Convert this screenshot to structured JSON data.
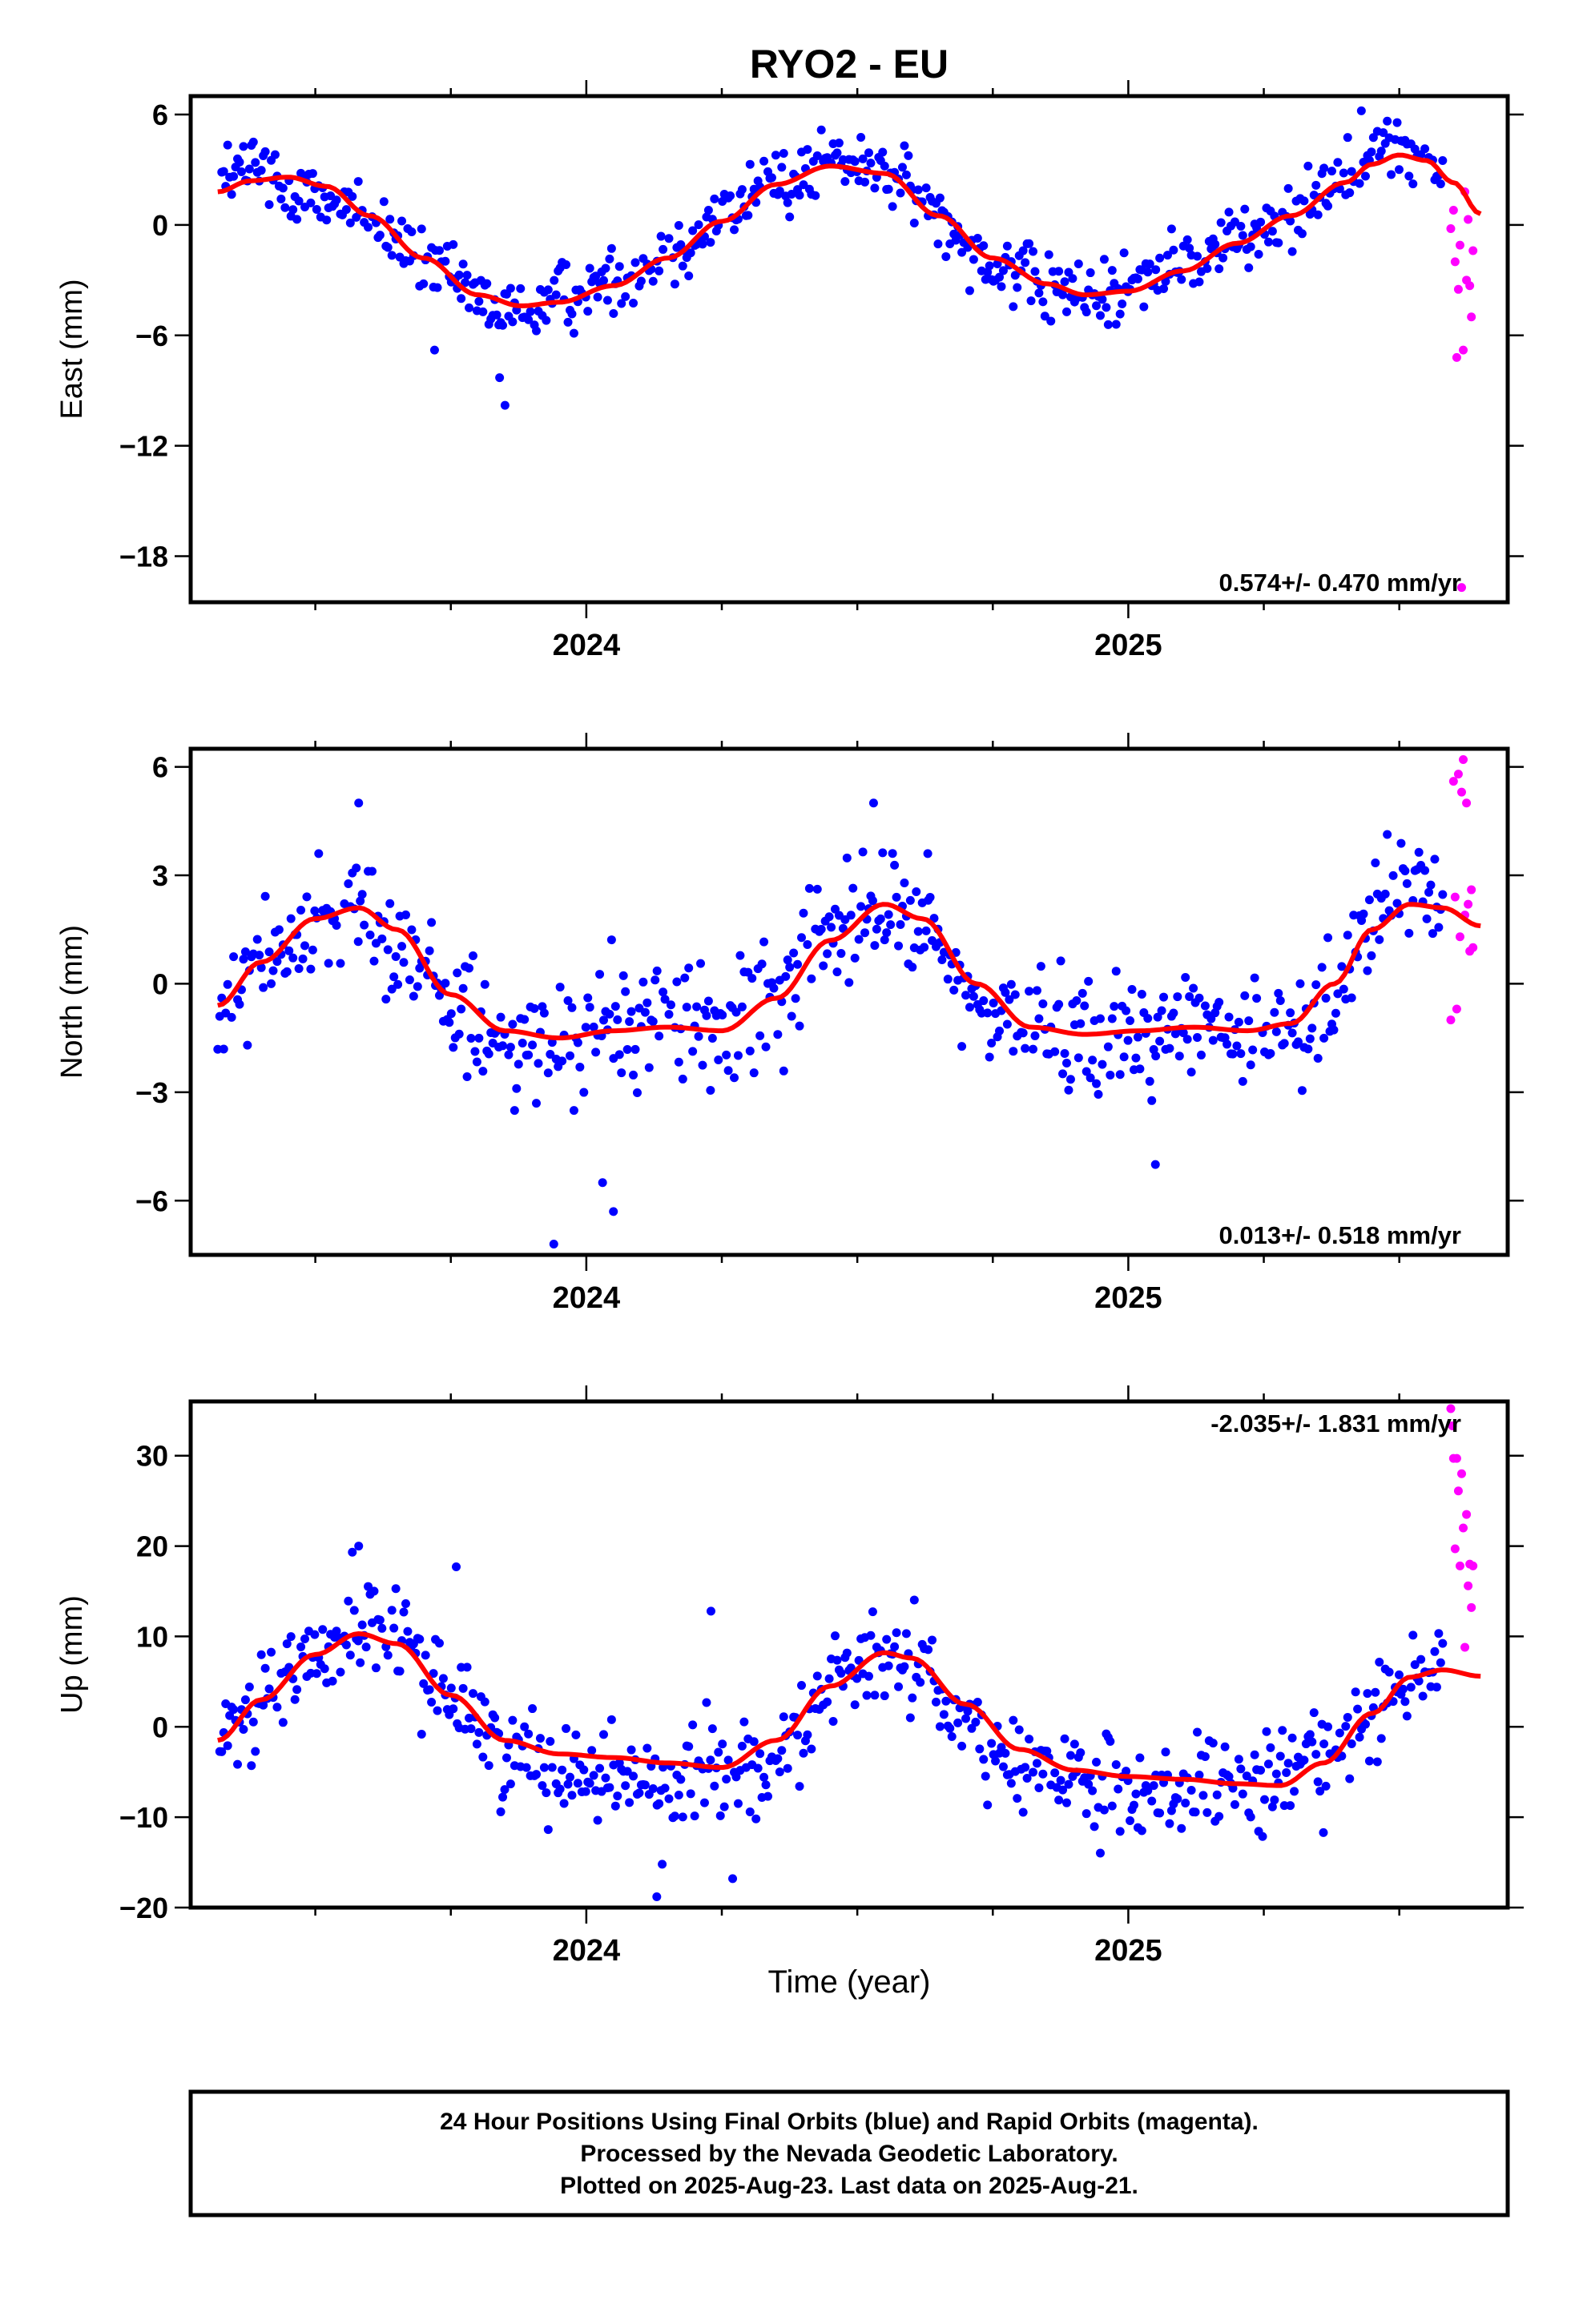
{
  "title": "RYO2 - EU",
  "colors": {
    "final": "#0000ff",
    "rapid": "#ff00ff",
    "model": "#ff0000",
    "frame": "#000000"
  },
  "footer": {
    "line1": "24 Hour Positions Using Final Orbits (blue) and Rapid Orbits (magenta).",
    "line2": "Processed by the Nevada Geodetic Laboratory.",
    "line3": "Plotted on 2025-Aug-23. Last data on 2025-Aug-21."
  },
  "chart_data": [
    {
      "type": "scatter",
      "component": "east",
      "ylabel": "East (mm)",
      "xlabel": "",
      "xlim": [
        2023.27,
        2025.7
      ],
      "ylim": [
        -20.5,
        7
      ],
      "x_ticks": [
        2024,
        2025
      ],
      "x_ticklabels": [
        "2024",
        "2025"
      ],
      "y_ticks": [
        6,
        0,
        -6,
        -12,
        -18
      ],
      "y_ticklabels": [
        "6",
        "0",
        "−6",
        "−12",
        "−18"
      ],
      "rate_label": "0.574+/- 0.470 mm/yr",
      "model_curve": {
        "x": [
          2023.32,
          2023.38,
          2023.45,
          2023.52,
          2023.6,
          2023.7,
          2023.8,
          2023.88,
          2023.95,
          2024.05,
          2024.15,
          2024.25,
          2024.35,
          2024.45,
          2024.55,
          2024.65,
          2024.75,
          2024.85,
          2024.92,
          2025.0,
          2025.1,
          2025.2,
          2025.3,
          2025.4,
          2025.45,
          2025.5,
          2025.55,
          2025.6,
          2025.65
        ],
        "y": [
          1.8,
          2.4,
          2.6,
          2.1,
          0.5,
          -1.8,
          -3.8,
          -4.4,
          -4.2,
          -3.3,
          -1.8,
          0.2,
          2.2,
          3.2,
          2.8,
          0.5,
          -1.8,
          -3.2,
          -3.8,
          -3.6,
          -2.5,
          -1.0,
          0.5,
          2.3,
          3.3,
          3.8,
          3.5,
          2.3,
          0.6
        ]
      },
      "series": [
        {
          "name": "Final Orbits",
          "color": "#0000ff",
          "anchors_x": [
            2023.32,
            2023.38,
            2023.45,
            2023.52,
            2023.6,
            2023.7,
            2023.8,
            2023.88,
            2023.95,
            2024.05,
            2024.15,
            2024.25,
            2024.35,
            2024.45,
            2024.55,
            2024.65,
            2024.75,
            2024.85,
            2024.92,
            2025.0,
            2025.1,
            2025.2,
            2025.3,
            2025.4,
            2025.45,
            2025.5,
            2025.55,
            2025.58
          ],
          "anchors_y": [
            2.6,
            3.2,
            2.2,
            1.4,
            0.2,
            -2.0,
            -4.2,
            -5.0,
            -4.0,
            -3.0,
            -1.5,
            0.5,
            2.4,
            3.4,
            2.9,
            0.6,
            -2.0,
            -3.4,
            -4.0,
            -3.2,
            -2.3,
            -0.8,
            0.8,
            2.8,
            4.0,
            4.2,
            3.2,
            2.0
          ],
          "x_start": 2023.32,
          "x_end": 2025.58,
          "spread": 1.3,
          "outliers": [
            [
              2023.85,
              -9.8
            ],
            [
              2023.84,
              -8.3
            ],
            [
              2023.72,
              -6.8
            ],
            [
              2025.43,
              6.2
            ]
          ]
        },
        {
          "name": "Rapid Orbits",
          "color": "#ff00ff",
          "points": [
            [
              2025.595,
              -0.2
            ],
            [
              2025.6,
              0.8
            ],
            [
              2025.603,
              -2.0
            ],
            [
              2025.606,
              -7.2
            ],
            [
              2025.609,
              -3.5
            ],
            [
              2025.612,
              -1.1
            ],
            [
              2025.615,
              -19.7
            ],
            [
              2025.618,
              -6.8
            ],
            [
              2025.621,
              1.8
            ],
            [
              2025.624,
              -3.0
            ],
            [
              2025.627,
              0.3
            ],
            [
              2025.63,
              -3.3
            ],
            [
              2025.633,
              -5.0
            ],
            [
              2025.636,
              -1.4
            ]
          ]
        }
      ]
    },
    {
      "type": "scatter",
      "component": "north",
      "ylabel": "North (mm)",
      "xlabel": "",
      "xlim": [
        2023.27,
        2025.7
      ],
      "ylim": [
        -7.5,
        6.5
      ],
      "x_ticks": [
        2024,
        2025
      ],
      "x_ticklabels": [
        "2024",
        "2025"
      ],
      "y_ticks": [
        6,
        3,
        0,
        -3,
        -6
      ],
      "y_ticklabels": [
        "6",
        "3",
        "0",
        "−3",
        "−6"
      ],
      "rate_label": "0.013+/- 0.518 mm/yr",
      "model_curve": {
        "x": [
          2023.32,
          2023.4,
          2023.5,
          2023.58,
          2023.65,
          2023.75,
          2023.85,
          2023.95,
          2024.05,
          2024.15,
          2024.25,
          2024.35,
          2024.45,
          2024.55,
          2024.62,
          2024.72,
          2024.82,
          2024.92,
          2025.02,
          2025.12,
          2025.22,
          2025.3,
          2025.38,
          2025.45,
          2025.52,
          2025.58,
          2025.65
        ],
        "y": [
          -0.6,
          0.6,
          1.8,
          2.1,
          1.5,
          -0.3,
          -1.3,
          -1.5,
          -1.3,
          -1.2,
          -1.3,
          -0.4,
          1.2,
          2.2,
          1.8,
          0.0,
          -1.2,
          -1.4,
          -1.3,
          -1.2,
          -1.3,
          -1.1,
          0.0,
          1.5,
          2.2,
          2.1,
          1.6
        ]
      },
      "series": [
        {
          "name": "Final Orbits",
          "color": "#0000ff",
          "anchors_x": [
            2023.32,
            2023.4,
            2023.5,
            2023.58,
            2023.65,
            2023.75,
            2023.85,
            2023.95,
            2024.05,
            2024.15,
            2024.25,
            2024.35,
            2024.45,
            2024.55,
            2024.62,
            2024.72,
            2024.82,
            2024.92,
            2025.02,
            2025.12,
            2025.22,
            2025.3,
            2025.38,
            2025.45,
            2025.52,
            2025.58
          ],
          "anchors_y": [
            -0.8,
            0.8,
            1.6,
            2.0,
            1.2,
            -0.4,
            -1.8,
            -1.8,
            -1.0,
            -0.8,
            -1.4,
            -0.2,
            1.4,
            2.2,
            1.6,
            -0.6,
            -1.0,
            -1.2,
            -1.4,
            -1.0,
            -1.6,
            -1.2,
            -0.2,
            1.8,
            2.8,
            2.2
          ],
          "x_start": 2023.32,
          "x_end": 2025.58,
          "spread": 1.15,
          "outliers": [
            [
              2023.94,
              -7.2
            ],
            [
              2024.05,
              -6.3
            ],
            [
              2024.03,
              -5.5
            ],
            [
              2023.58,
              5.0
            ],
            [
              2024.53,
              5.0
            ],
            [
              2025.05,
              -5.0
            ],
            [
              2024.63,
              3.6
            ]
          ]
        },
        {
          "name": "Rapid Orbits",
          "color": "#ff00ff",
          "points": [
            [
              2025.595,
              -1.0
            ],
            [
              2025.6,
              5.6
            ],
            [
              2025.603,
              2.4
            ],
            [
              2025.606,
              -0.7
            ],
            [
              2025.609,
              5.8
            ],
            [
              2025.612,
              1.3
            ],
            [
              2025.615,
              5.3
            ],
            [
              2025.618,
              6.2
            ],
            [
              2025.621,
              1.9
            ],
            [
              2025.624,
              5.0
            ],
            [
              2025.627,
              2.2
            ],
            [
              2025.63,
              0.9
            ],
            [
              2025.633,
              2.6
            ],
            [
              2025.636,
              1.0
            ]
          ]
        }
      ]
    },
    {
      "type": "scatter",
      "component": "up",
      "ylabel": "Up (mm)",
      "xlabel": "Time (year)",
      "xlim": [
        2023.27,
        2025.7
      ],
      "ylim": [
        -20,
        36
      ],
      "x_ticks": [
        2024,
        2025
      ],
      "x_ticklabels": [
        "2024",
        "2025"
      ],
      "y_ticks": [
        30,
        20,
        10,
        0,
        -10,
        -20
      ],
      "y_ticklabels": [
        "30",
        "20",
        "10",
        "0",
        "−10",
        "−20"
      ],
      "rate_label": "-2.035+/- 1.831 mm/yr",
      "model_curve": {
        "x": [
          2023.32,
          2023.4,
          2023.5,
          2023.58,
          2023.65,
          2023.75,
          2023.85,
          2023.95,
          2024.05,
          2024.15,
          2024.25,
          2024.35,
          2024.45,
          2024.55,
          2024.6,
          2024.7,
          2024.8,
          2024.9,
          2025.0,
          2025.1,
          2025.2,
          2025.28,
          2025.36,
          2025.45,
          2025.52,
          2025.58,
          2025.65
        ],
        "y": [
          -1.5,
          3.0,
          8.0,
          10.3,
          9.2,
          3.5,
          -1.5,
          -3.0,
          -3.4,
          -4.0,
          -4.5,
          -1.5,
          4.5,
          8.2,
          7.6,
          2.5,
          -2.5,
          -4.8,
          -5.5,
          -5.8,
          -6.3,
          -6.5,
          -4.0,
          1.5,
          5.5,
          6.3,
          5.6
        ]
      },
      "series": [
        {
          "name": "Final Orbits",
          "color": "#0000ff",
          "anchors_x": [
            2023.32,
            2023.4,
            2023.5,
            2023.58,
            2023.65,
            2023.75,
            2023.85,
            2023.95,
            2024.05,
            2024.15,
            2024.25,
            2024.35,
            2024.45,
            2024.55,
            2024.6,
            2024.7,
            2024.8,
            2024.9,
            2025.0,
            2025.1,
            2025.2,
            2025.28,
            2025.36,
            2025.45,
            2025.52,
            2025.58
          ],
          "anchors_y": [
            -2.0,
            4.0,
            8.0,
            11.5,
            9.0,
            4.0,
            -2.5,
            -4.0,
            -5.0,
            -6.0,
            -4.0,
            -3.5,
            4.0,
            8.0,
            7.0,
            1.0,
            -5.0,
            -6.0,
            -7.5,
            -6.5,
            -8.0,
            -6.0,
            -2.0,
            2.0,
            6.0,
            7.0
          ],
          "x_start": 2023.32,
          "x_end": 2025.58,
          "spread": 3.8,
          "outliers": [
            [
              2024.13,
              -18.8
            ],
            [
              2024.27,
              -16.8
            ],
            [
              2023.58,
              20.0
            ],
            [
              2023.76,
              17.7
            ],
            [
              2024.23,
              12.8
            ],
            [
              2024.14,
              -15.2
            ],
            [
              2025.36,
              -11.7
            ]
          ]
        },
        {
          "name": "Rapid Orbits",
          "color": "#ff00ff",
          "points": [
            [
              2025.595,
              35.2
            ],
            [
              2025.598,
              33.3
            ],
            [
              2025.6,
              29.7
            ],
            [
              2025.603,
              19.7
            ],
            [
              2025.606,
              29.7
            ],
            [
              2025.609,
              26.1
            ],
            [
              2025.612,
              17.8
            ],
            [
              2025.615,
              28.0
            ],
            [
              2025.618,
              22.0
            ],
            [
              2025.621,
              8.8
            ],
            [
              2025.624,
              23.5
            ],
            [
              2025.627,
              15.6
            ],
            [
              2025.63,
              18.0
            ],
            [
              2025.633,
              13.2
            ],
            [
              2025.636,
              17.8
            ]
          ]
        }
      ]
    }
  ]
}
